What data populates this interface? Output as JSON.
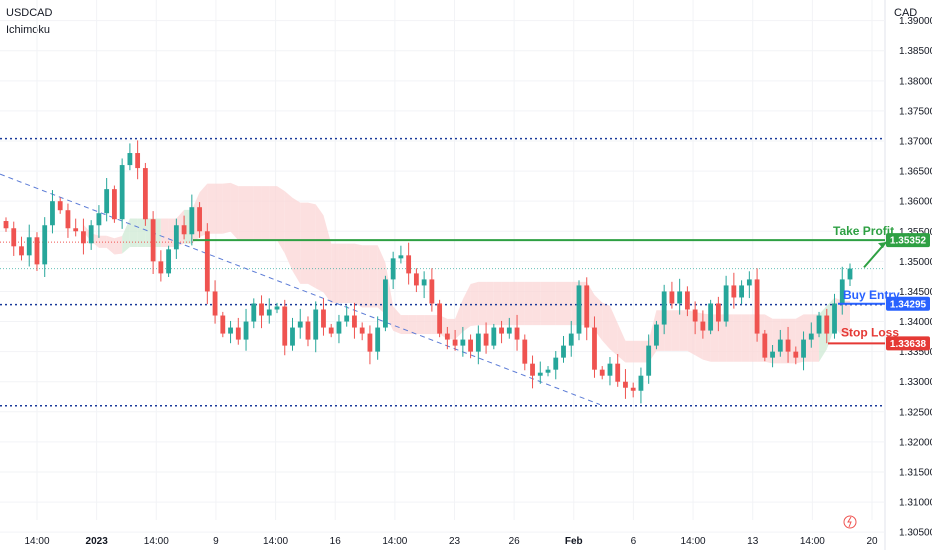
{
  "header": {
    "symbol": "USDCAD",
    "indicator": "Ichimoku",
    "currency": "CAD"
  },
  "colors": {
    "up": "#26a69a",
    "down": "#ef5350",
    "take_profit": "#2ea043",
    "entry": "#2962ff",
    "stop_loss": "#e53935",
    "support_resistance": "#1a3a9a",
    "cloud_bear": "#fbd5d5",
    "cloud_bull": "#cfe9d4"
  },
  "chart_data": {
    "type": "candlestick",
    "price_axis_label": "CAD",
    "ylim": [
      1.3027,
      1.3926
    ],
    "y_ticks": [
      "1.39000",
      "1.38500",
      "1.38000",
      "1.37500",
      "1.37000",
      "1.36500",
      "1.36000",
      "1.35500",
      "1.35000",
      "1.34500",
      "1.34000",
      "1.33500",
      "1.33000",
      "1.32500",
      "1.32000",
      "1.31500",
      "1.31000",
      "1.30500"
    ],
    "x_ticks": [
      "14:00",
      "2023",
      "14:00",
      "9",
      "14:00",
      "16",
      "14:00",
      "23",
      "26",
      "Feb",
      "6",
      "14:00",
      "13",
      "14:00",
      "20"
    ],
    "horizontal_levels": [
      1.3704,
      1.3428,
      1.326
    ],
    "take_profit": {
      "label": "Take Profit",
      "price": 1.35352,
      "price_label": "1.35352"
    },
    "entry": {
      "label": "Buy Entry",
      "price": 1.34295,
      "price_label": "1.34295"
    },
    "stop_loss": {
      "label": "Stop Loss",
      "price": 1.33638,
      "price_label": "1.33638"
    },
    "trendline": {
      "from": 1.3645,
      "to": 1.3262
    },
    "cloud_note": "Ichimoku cloud shown as shaded band; mostly bearish (red) with bullish (green) sections",
    "closes": [
      1.3555,
      1.3525,
      1.351,
      1.354,
      1.3495,
      1.356,
      1.36,
      1.3585,
      1.3555,
      1.355,
      1.353,
      1.356,
      1.358,
      1.362,
      1.357,
      1.366,
      1.368,
      1.3655,
      1.357,
      1.35,
      1.348,
      1.352,
      1.356,
      1.3545,
      1.359,
      1.355,
      1.345,
      1.341,
      1.338,
      1.339,
      1.337,
      1.34,
      1.343,
      1.341,
      1.342,
      1.3425,
      1.336,
      1.339,
      1.34,
      1.337,
      1.342,
      1.339,
      1.338,
      1.34,
      1.341,
      1.339,
      1.338,
      1.335,
      1.339,
      1.347,
      1.3505,
      1.351,
      1.348,
      1.346,
      1.347,
      1.343,
      1.338,
      1.337,
      1.336,
      1.337,
      1.335,
      1.338,
      1.336,
      1.339,
      1.338,
      1.339,
      1.337,
      1.333,
      1.331,
      1.3315,
      1.332,
      1.334,
      1.336,
      1.338,
      1.346,
      1.339,
      1.332,
      1.331,
      1.333,
      1.33,
      1.329,
      1.3285,
      1.331,
      1.336,
      1.3395,
      1.345,
      1.343,
      1.345,
      1.342,
      1.34,
      1.3385,
      1.343,
      1.34,
      1.346,
      1.344,
      1.346,
      1.347,
      1.338,
      1.334,
      1.335,
      1.337,
      1.335,
      1.334,
      1.337,
      1.338,
      1.341,
      1.338,
      1.343,
      1.347,
      1.3488
    ]
  }
}
